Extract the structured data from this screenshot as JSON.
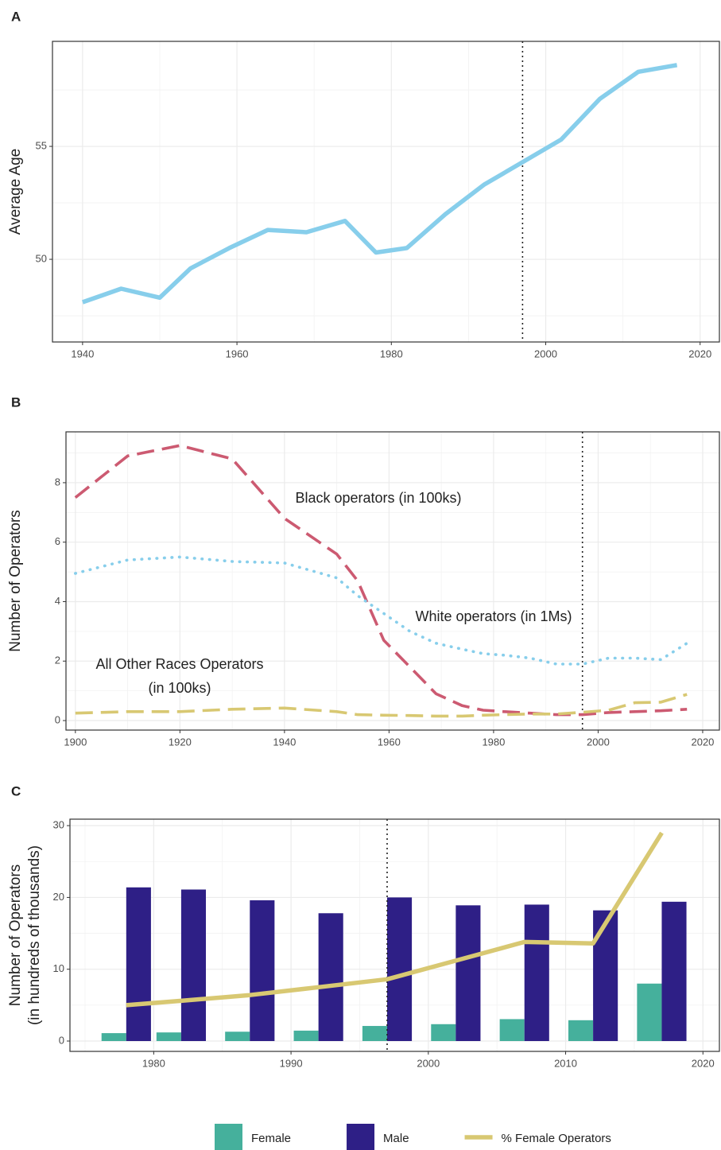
{
  "chart_data": [
    {
      "type": "line",
      "panel": "A",
      "ylabel": [
        "Average Age"
      ],
      "x": [
        1940,
        1945,
        1950,
        1954,
        1959,
        1964,
        1969,
        1974,
        1978,
        1982,
        1987,
        1992,
        1997,
        2002,
        2007,
        2012,
        2017
      ],
      "series": [
        {
          "color": "#87ceeb",
          "style": "solid",
          "values": [
            48.1,
            48.7,
            48.3,
            49.6,
            50.5,
            51.3,
            51.2,
            51.7,
            50.3,
            50.5,
            52.0,
            53.3,
            54.3,
            55.3,
            57.1,
            58.3,
            58.6
          ]
        }
      ],
      "xlim": [
        1936.1,
        2022.5
      ],
      "ylim": [
        46.34,
        59.65
      ],
      "xticks": [
        1940,
        1960,
        1980,
        2000,
        2020
      ],
      "yticks": [
        50,
        55
      ],
      "grid": true,
      "minor_grid": true,
      "vline": 1997
    },
    {
      "type": "line",
      "panel": "B",
      "ylabel": [
        "Number of Operators"
      ],
      "x": [
        1900,
        1910,
        1920,
        1930,
        1940,
        1950,
        1954,
        1959,
        1964,
        1969,
        1974,
        1978,
        1982,
        1987,
        1992,
        1997,
        2002,
        2007,
        2012,
        2017
      ],
      "series": [
        {
          "color": "#cc5a71",
          "style": "dashed",
          "values": [
            7.5,
            8.9,
            9.25,
            8.8,
            6.8,
            5.6,
            4.7,
            2.7,
            1.8,
            0.9,
            0.5,
            0.35,
            0.3,
            0.25,
            0.2,
            0.2,
            0.27,
            0.3,
            0.33,
            0.38
          ]
        },
        {
          "color": "#87ceeb",
          "style": "dotted",
          "values": [
            4.95,
            5.4,
            5.5,
            5.35,
            5.3,
            4.8,
            4.2,
            3.6,
            3.0,
            2.6,
            2.4,
            2.25,
            2.2,
            2.1,
            1.9,
            1.9,
            2.1,
            2.1,
            2.05,
            2.6
          ]
        },
        {
          "color": "#d8c872",
          "style": "dashed",
          "values": [
            0.25,
            0.3,
            0.3,
            0.38,
            0.42,
            0.3,
            0.2,
            0.18,
            0.17,
            0.15,
            0.15,
            0.18,
            0.2,
            0.22,
            0.22,
            0.28,
            0.35,
            0.6,
            0.62,
            0.88
          ]
        }
      ],
      "annotations": [
        {
          "text": [
            "Black operators (in 100ks)"
          ]
        },
        {
          "text": [
            "White operators (in 1Ms)"
          ]
        },
        {
          "text": [
            "All Other Races Operators",
            "(in 100ks)"
          ]
        }
      ],
      "xlim": [
        1898.2,
        2023.2
      ],
      "ylim": [
        -0.32,
        9.71
      ],
      "xticks": [
        1900,
        1920,
        1940,
        1960,
        1980,
        2000,
        2020
      ],
      "yticks": [
        0,
        2,
        4,
        6,
        8
      ],
      "grid": true,
      "minor_grid": true,
      "vline": 1997
    },
    {
      "type": "bar",
      "panel": "C",
      "ylabel": [
        "Number of Operators",
        "(in hundreds of thousands)"
      ],
      "x": [
        1978,
        1982,
        1987,
        1992,
        1997,
        2002,
        2007,
        2012,
        2017
      ],
      "series": [
        {
          "name": "Female",
          "color": "#45b09c",
          "type": "bar",
          "values": [
            1.1,
            1.2,
            1.3,
            1.45,
            2.1,
            2.35,
            3.05,
            2.9,
            8.0
          ]
        },
        {
          "name": "Male",
          "color": "#2e1f86",
          "type": "bar",
          "values": [
            21.4,
            21.1,
            19.6,
            17.8,
            20.0,
            18.9,
            19.0,
            18.2,
            19.4
          ]
        },
        {
          "name": "% Female Operators",
          "color": "#d8c872",
          "type": "line",
          "style": "solid",
          "values": [
            5.0,
            5.6,
            6.4,
            7.5,
            8.6,
            11.2,
            13.8,
            13.6,
            29.0
          ]
        }
      ],
      "xlim": [
        1973.9,
        2021.2
      ],
      "ylim": [
        -1.44,
        30.9
      ],
      "xticks": [
        1980,
        1990,
        2000,
        2010,
        2020
      ],
      "yticks": [
        0,
        10,
        20,
        30
      ],
      "grid": true,
      "minor_grid": true,
      "vline": 1997,
      "legend": "bottom"
    }
  ]
}
